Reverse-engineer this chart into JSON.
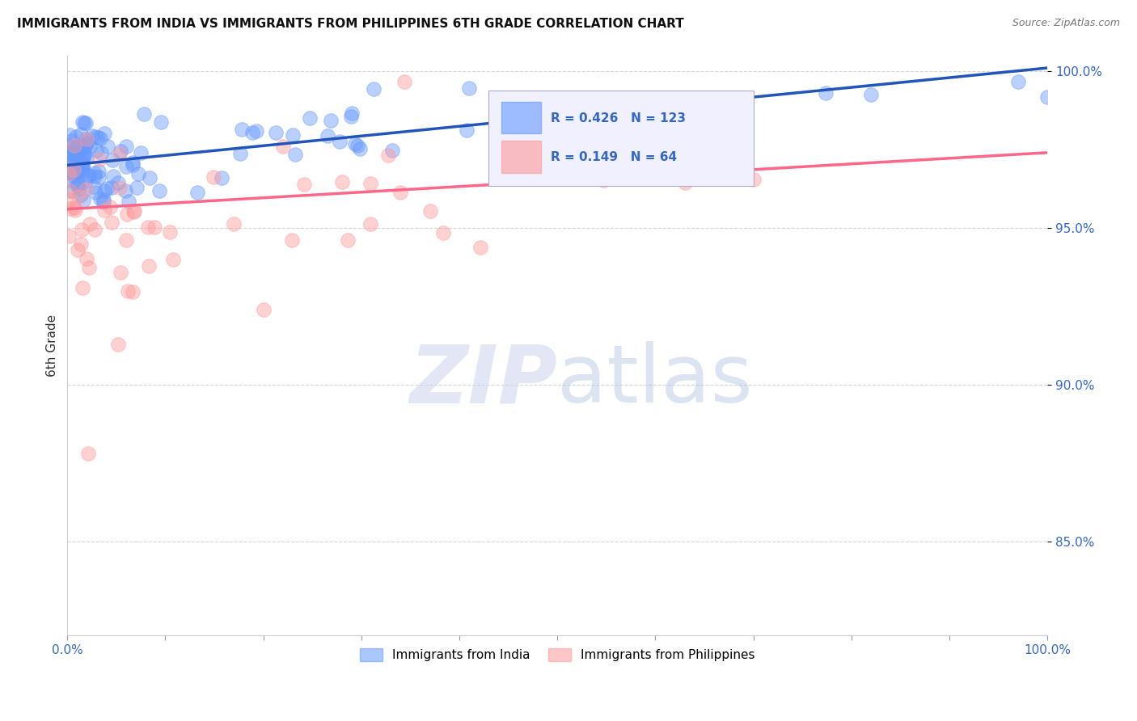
{
  "title": "IMMIGRANTS FROM INDIA VS IMMIGRANTS FROM PHILIPPINES 6TH GRADE CORRELATION CHART",
  "source": "Source: ZipAtlas.com",
  "ylabel": "6th Grade",
  "r_india": 0.426,
  "n_india": 123,
  "r_philippines": 0.149,
  "n_philippines": 64,
  "india_color": "#6699ff",
  "philippines_color": "#ff9999",
  "india_line_color": "#2255bb",
  "philippines_line_color": "#ff6688",
  "xlim": [
    0.0,
    1.0
  ],
  "ylim": [
    0.82,
    1.005
  ],
  "x_tick_labels": [
    "0.0%",
    "",
    "",
    "",
    "",
    "",
    "",
    "",
    "",
    "",
    "100.0%"
  ],
  "y_ticks": [
    0.85,
    0.9,
    0.95,
    1.0
  ],
  "y_tick_labels": [
    "85.0%",
    "90.0%",
    "95.0%",
    "100.0%"
  ],
  "india_line_start_y": 0.97,
  "india_line_end_y": 1.001,
  "phil_line_start_y": 0.956,
  "phil_line_end_y": 0.974
}
